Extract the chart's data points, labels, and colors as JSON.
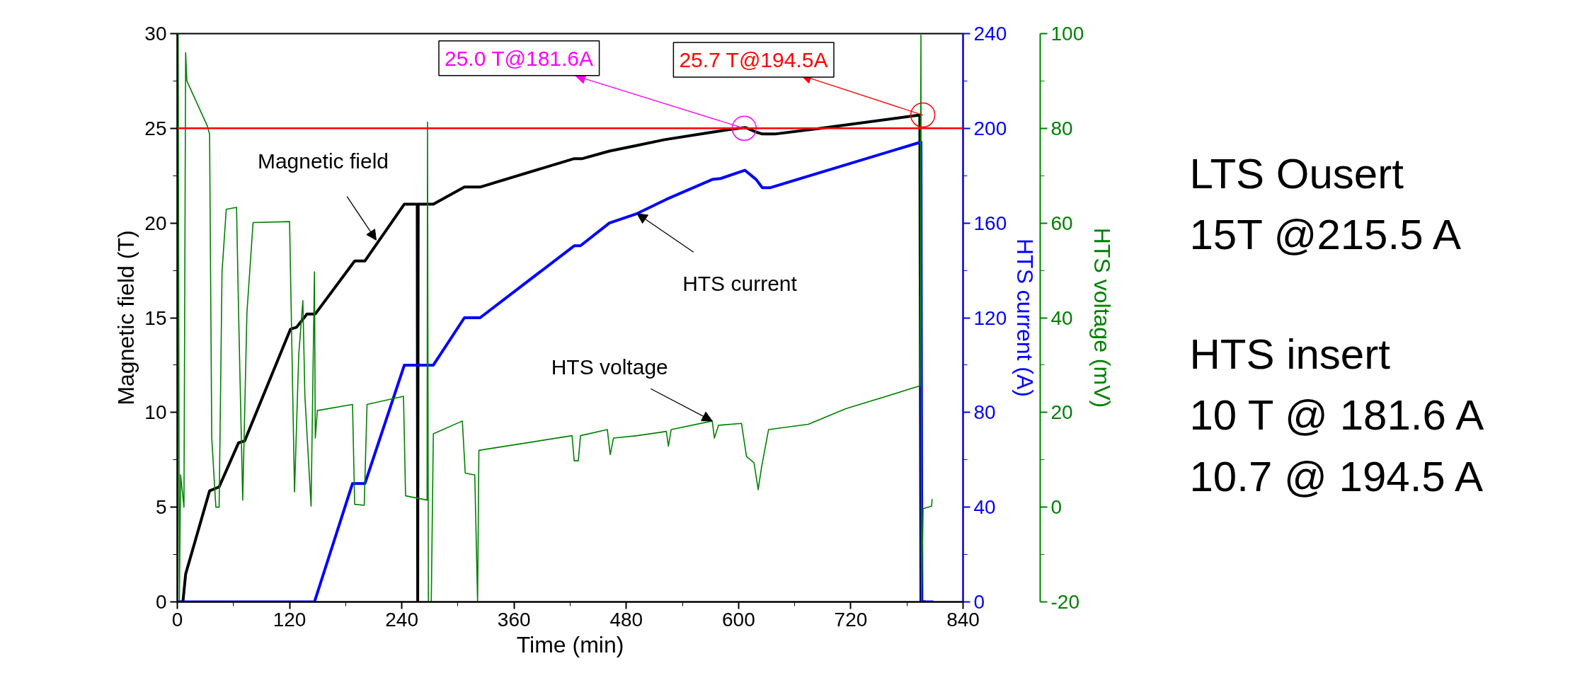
{
  "chart_data": {
    "type": "line",
    "xlabel": "Time (min)",
    "ylabel": "Magnetic field (T)",
    "y2label": "HTS current (A)",
    "y3label": "HTS voltage (mV)",
    "xlim": [
      0,
      840
    ],
    "xticks": [
      0,
      120,
      240,
      360,
      480,
      600,
      720,
      840
    ],
    "ylim": [
      0,
      30
    ],
    "yticks": [
      0,
      5,
      10,
      15,
      20,
      25,
      30
    ],
    "y2lim": [
      0,
      240
    ],
    "y2ticks": [
      0,
      40,
      80,
      120,
      160,
      200,
      240
    ],
    "y3lim": [
      -20,
      100
    ],
    "y3ticks": [
      -20,
      0,
      20,
      40,
      60,
      80,
      100
    ],
    "grid": false,
    "ref_lines": [
      {
        "axis": "y",
        "value": 25,
        "color": "#ff0000"
      }
    ],
    "series": [
      {
        "color": "#000000",
        "x": [
          0,
          6,
          8.9,
          34.5,
          44.7,
          65.5,
          72,
          121,
          127.5,
          138.6,
          147.5,
          189.6,
          200.6,
          242.7,
          256.5,
          257,
          257.5,
          273.7,
          306.9,
          323.7,
          424.3,
          433,
          461.9,
          491.5,
          520.8,
          571.9,
          600,
          607.6,
          618.8,
          625.4,
          638.8,
          688,
          793.8,
          795,
          800
        ],
        "values": [
          0,
          0,
          1.47,
          5.86,
          6.07,
          8.4,
          8.5,
          14.4,
          14.5,
          15.2,
          15.2,
          18.0,
          18.0,
          21.0,
          21.0,
          0,
          21.0,
          21.0,
          21.9,
          21.9,
          23.4,
          23.4,
          23.8,
          24.1,
          24.4,
          24.8,
          25.0,
          25.04,
          24.8,
          24.7,
          24.7,
          25.0,
          25.7,
          0,
          0
        ]
      },
      {
        "color": "#0000ff",
        "axis": "y2",
        "x": [
          0,
          146.6,
          187.3,
          200.6,
          242.7,
          273.7,
          306.9,
          323.7,
          424.3,
          431,
          461.9,
          491.5,
          522.8,
          571.9,
          580.8,
          606.7,
          618.8,
          625.4,
          633.5,
          795,
          796,
          808.4
        ],
        "values": [
          0,
          0,
          50,
          50,
          100,
          100,
          120,
          120,
          150.4,
          150.4,
          160,
          164,
          170,
          178.4,
          178.8,
          182.3,
          178.4,
          174.9,
          174.9,
          194.2,
          0,
          0
        ]
      },
      {
        "color": "#008000",
        "axis": "y3",
        "x": [
          0,
          0.9,
          2.2,
          3.5,
          7.1,
          8.9,
          10.2,
          32.3,
          34.5,
          36.8,
          41.2,
          44.7,
          47.8,
          52.3,
          63.3,
          65.5,
          69.9,
          74.4,
          81,
          120,
          121.8,
          125.3,
          129.8,
          134.2,
          136.4,
          143,
          146.6,
          147.5,
          149.7,
          187.3,
          189.6,
          199.8,
          202.8,
          241.8,
          244,
          267,
          267.5,
          268.4,
          271.5,
          273.7,
          304.7,
          307.8,
          318,
          321,
          322.4,
          422,
          424.3,
          428.7,
          431,
          459.7,
          462.8,
          466.3,
          491.5,
          522.8,
          525,
          528,
          571.9,
          574.1,
          578.6,
          603.1,
          608.5,
          616.5,
          621,
          624.6,
          632.1,
          674.6,
          714.7,
          793.8,
          795,
          795.5,
          797.3,
          806.3,
          807
        ],
        "values": [
          -20,
          100,
          -20,
          6.8,
          0,
          96,
          90,
          80.4,
          78.7,
          14.6,
          0,
          0,
          49.7,
          62.9,
          63.3,
          41,
          1.5,
          41,
          60.1,
          60.3,
          41,
          3.2,
          32.2,
          43.6,
          23.4,
          0.2,
          49.7,
          14.6,
          20.4,
          21.7,
          0.6,
          0.4,
          21.7,
          23.4,
          2.4,
          1.5,
          81.3,
          -20,
          -20,
          15.5,
          18.2,
          7.2,
          6.8,
          -20,
          12,
          15.1,
          9.8,
          9.8,
          15.1,
          16.4,
          11.1,
          14.6,
          15.1,
          16,
          12.9,
          16.4,
          18.2,
          14.6,
          17.3,
          17.7,
          10.7,
          9.4,
          3.7,
          8.5,
          16.4,
          17.5,
          20.8,
          25.6,
          99.7,
          -20,
          -0.3,
          0.2,
          1.7
        ]
      }
    ],
    "annotations": [
      {
        "text": "Magnetic field",
        "x": 212.6,
        "y": 19.1
      },
      {
        "text": "HTS current",
        "x": 491.5,
        "y": 20.5
      },
      {
        "text": "HTS voltage",
        "x": 571.9,
        "y": 9.55
      },
      {
        "text": "25.0 T@181.6A",
        "x": 606,
        "y": 25.0
      },
      {
        "text": "25.7 T@194.5A",
        "x": 797,
        "y": 25.7
      },
      "LTS Ousert",
      "15T @215.5 A",
      "HTS insert",
      "10 T @ 181.6 A",
      "10.7 @ 194.5 A"
    ]
  }
}
